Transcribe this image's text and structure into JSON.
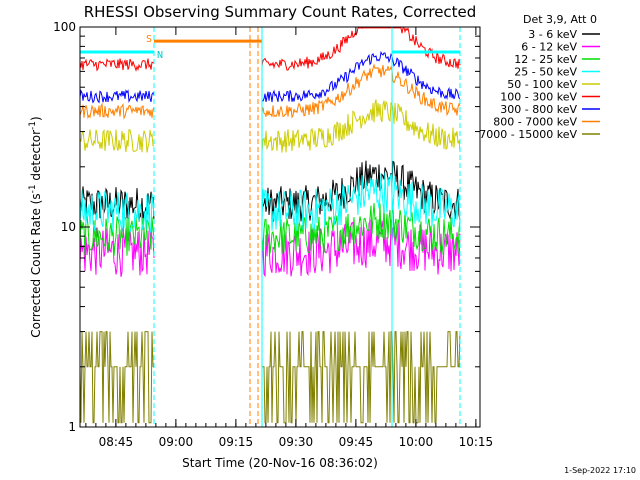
{
  "chart_data": {
    "type": "line",
    "title": "RHESSI Observing Summary Count Rates, Corrected",
    "xlabel": "Start Time (20-Nov-16 08:36:02)",
    "ylabel": "Corrected Count Rate (s",
    "ylabel_sup1": "-1",
    "ylabel_mid": " detector",
    "ylabel_sup2": "-1",
    "ylabel_end": ")",
    "x_unit": "minutes after 08:36:02",
    "xlim": [
      0,
      100
    ],
    "ylim": [
      1,
      100
    ],
    "y_scale": "log",
    "x_ticks": [
      {
        "label": "08:45",
        "value": 8.97
      },
      {
        "label": "09:00",
        "value": 23.97
      },
      {
        "label": "09:15",
        "value": 38.97
      },
      {
        "label": "09:30",
        "value": 53.97
      },
      {
        "label": "09:45",
        "value": 68.97
      },
      {
        "label": "10:00",
        "value": 83.97
      },
      {
        "label": "10:15",
        "value": 98.97
      }
    ],
    "y_ticks": [
      {
        "label": "1",
        "value": 1
      },
      {
        "label": "10",
        "value": 10
      },
      {
        "label": "100",
        "value": 100
      }
    ],
    "legend_title": "Det 3,9, Att 0",
    "legend_position": "right",
    "series": [
      {
        "name": "3 - 6 keV",
        "color": "#000000",
        "level": 13,
        "noise": 0.18,
        "bump": 0.15
      },
      {
        "name": "6 - 12 keV",
        "color": "#ff00ff",
        "level": 7.5,
        "noise": 0.25,
        "bump": 0.05
      },
      {
        "name": "12 - 25 keV",
        "color": "#00dd00",
        "level": 9,
        "noise": 0.2,
        "bump": 0.08
      },
      {
        "name": "25 - 50 keV",
        "color": "#00ffff",
        "level": 12,
        "noise": 0.22,
        "bump": 0.1
      },
      {
        "name": "50 - 100 keV",
        "color": "#cccc00",
        "level": 27,
        "noise": 0.12,
        "bump": 0.15
      },
      {
        "name": "100 - 300 keV",
        "color": "#ff0000",
        "level": 65,
        "noise": 0.06,
        "bump": 0.25
      },
      {
        "name": "300 - 800 keV",
        "color": "#0000ff",
        "level": 45,
        "noise": 0.06,
        "bump": 0.2
      },
      {
        "name": "800 - 7000 keV",
        "color": "#ff8000",
        "level": 38,
        "noise": 0.07,
        "bump": 0.2
      },
      {
        "name": "7000 - 15000 keV",
        "color": "#808000",
        "level": 2,
        "noise": 0.5,
        "bump": 0.0
      }
    ],
    "data_intervals": [
      [
        0,
        18.5
      ],
      [
        45.5,
        95
      ]
    ],
    "saa_flag": {
      "label": "S",
      "color": "#ff8000",
      "start": 18.5,
      "end": 45.5,
      "level": 85
    },
    "night_flag": {
      "label": "N",
      "color": "#00ffff",
      "start": 0,
      "end": 18.5,
      "level": 75
    },
    "night_flag_2": {
      "start": 78,
      "end": 95,
      "level": 75
    },
    "vlines": [
      {
        "x": 0,
        "color": "#00ffff",
        "dash": false
      },
      {
        "x": 18.5,
        "color": "#00ffff",
        "dash": true
      },
      {
        "x": 45.5,
        "color": "#00ffff",
        "dash": false
      },
      {
        "x": 78,
        "color": "#00ffff",
        "dash": false
      },
      {
        "x": 95,
        "color": "#00ffff",
        "dash": true
      },
      {
        "x": 42.5,
        "color": "#ff8000",
        "dash": true
      },
      {
        "x": 44.5,
        "color": "#ff8000",
        "dash": true
      }
    ],
    "timestamp": "1-Sep-2022 17:10"
  }
}
